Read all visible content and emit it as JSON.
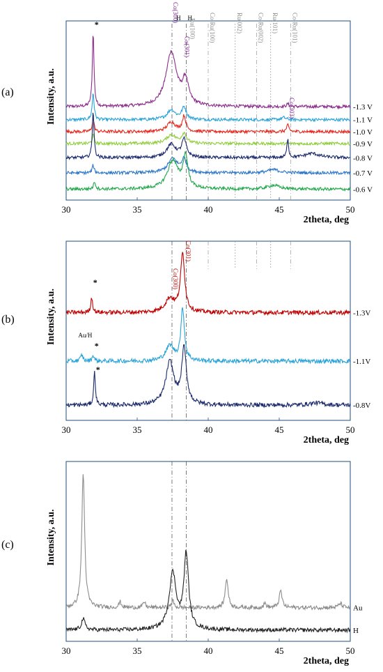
{
  "figure": {
    "panel_labels": [
      "(a)",
      "(b)",
      "(c)"
    ],
    "colors": {
      "frame": "#1f4e79",
      "ref_line": "#555555",
      "co_label": "#7a1f8c",
      "co_label_b": "#c00000",
      "ru_label": "#888888",
      "text": "#000000"
    }
  },
  "chart_data": [
    {
      "type": "line",
      "panel": "(a)",
      "xlabel": "2theta, deg",
      "ylabel": "Intensity, a.u.",
      "xlim": [
        30,
        50
      ],
      "xticks": [
        30,
        35,
        40,
        45,
        50
      ],
      "grid": false,
      "legend": "right-edge labels",
      "annotations": [
        {
          "text": "*",
          "x": 31.9
        },
        {
          "text": "Co(300)",
          "x": 37.4
        },
        {
          "text": "H",
          "x": 37.9
        },
        {
          "text": "H",
          "x": 38.7
        },
        {
          "text": "Co(301)",
          "x": 38.2
        },
        {
          "text": "Ru(100)",
          "x": 38.6
        },
        {
          "text": "Co-Ru(100)",
          "x": 40.0
        },
        {
          "text": "Ru(002)",
          "x": 41.9
        },
        {
          "text": "Co-Ru(002)",
          "x": 43.4
        },
        {
          "text": "Ru(101)",
          "x": 44.4
        },
        {
          "text": "Co-Ru(101)",
          "x": 45.8
        },
        {
          "text": "Co(303)",
          "x": 45.6
        }
      ],
      "reference_lines_x": [
        37.45,
        38.45,
        40.0,
        41.9,
        43.4,
        44.4,
        45.8
      ],
      "series": [
        {
          "name": "-1.3 V",
          "color": "#8b2d8b",
          "baseline": 8.6,
          "peaks": [
            {
              "x": 31.9,
              "h": 6.9,
              "w": 0.07
            },
            {
              "x": 37.4,
              "h": 5.0,
              "w": 0.45
            },
            {
              "x": 38.4,
              "h": 2.2,
              "w": 0.25
            },
            {
              "x": 45.6,
              "h": 0.25,
              "w": 0.1
            }
          ]
        },
        {
          "name": "-1.1 V",
          "color": "#29a3d8",
          "baseline": 7.4,
          "peaks": [
            {
              "x": 31.9,
              "h": 2.5,
              "w": 0.08
            },
            {
              "x": 37.4,
              "h": 0.9,
              "w": 0.35
            },
            {
              "x": 38.3,
              "h": 1.1,
              "w": 0.2
            },
            {
              "x": 45.3,
              "h": 0.2,
              "w": 0.2
            }
          ]
        },
        {
          "name": "-1.0 V",
          "color": "#e8281e",
          "baseline": 6.3,
          "peaks": [
            {
              "x": 31.9,
              "h": 1.2,
              "w": 0.08
            },
            {
              "x": 37.4,
              "h": 0.9,
              "w": 0.35
            },
            {
              "x": 38.3,
              "h": 1.4,
              "w": 0.15
            },
            {
              "x": 45.6,
              "h": 0.6,
              "w": 0.1
            }
          ]
        },
        {
          "name": "-0.9 V",
          "color": "#8fce3c",
          "baseline": 5.2,
          "peaks": [
            {
              "x": 31.9,
              "h": 0.8,
              "w": 0.08
            },
            {
              "x": 37.4,
              "h": 0.8,
              "w": 0.4
            },
            {
              "x": 38.3,
              "h": 0.9,
              "w": 0.2
            }
          ]
        },
        {
          "name": "-0.8 V",
          "color": "#1a2a6c",
          "baseline": 3.9,
          "peaks": [
            {
              "x": 31.9,
              "h": 4.4,
              "w": 0.07
            },
            {
              "x": 37.4,
              "h": 1.2,
              "w": 0.4
            },
            {
              "x": 38.3,
              "h": 1.6,
              "w": 0.2
            },
            {
              "x": 45.6,
              "h": 1.8,
              "w": 0.07
            },
            {
              "x": 47.3,
              "h": 0.4,
              "w": 0.6
            }
          ]
        },
        {
          "name": "-0.7 V",
          "color": "#2e78c8",
          "baseline": 2.5,
          "peaks": [
            {
              "x": 31.9,
              "h": 0.7,
              "w": 0.08
            },
            {
              "x": 37.5,
              "h": 1.3,
              "w": 0.4
            },
            {
              "x": 38.3,
              "h": 1.2,
              "w": 0.2
            },
            {
              "x": 44.6,
              "h": 0.3,
              "w": 0.5
            }
          ]
        },
        {
          "name": "-0.6 V",
          "color": "#1fa74a",
          "baseline": 1.0,
          "peaks": [
            {
              "x": 32.0,
              "h": 0.7,
              "w": 0.08
            },
            {
              "x": 37.5,
              "h": 2.6,
              "w": 0.45
            },
            {
              "x": 38.4,
              "h": 2.9,
              "w": 0.2
            },
            {
              "x": 44.6,
              "h": 0.35,
              "w": 0.5
            }
          ]
        }
      ]
    },
    {
      "type": "line",
      "panel": "(b)",
      "xlabel": "2theta, deg",
      "ylabel": "Intensity, a.u.",
      "xlim": [
        30,
        50
      ],
      "xticks": [
        30,
        35,
        40,
        45,
        50
      ],
      "grid": false,
      "legend": "right-edge labels",
      "annotations": [
        {
          "text": "*",
          "x": 31.8
        },
        {
          "text": "Co(300)",
          "x": 37.4
        },
        {
          "text": "Co(301)",
          "x": 38.3
        },
        {
          "text": "Au/H",
          "x": 31.0
        },
        {
          "text": "*",
          "x": 31.9
        },
        {
          "text": "*",
          "x": 32.0
        }
      ],
      "series": [
        {
          "name": "-1.3V",
          "color": "#c00000",
          "baseline": 7.1,
          "peaks": [
            {
              "x": 31.8,
              "h": 1.0,
              "w": 0.08
            },
            {
              "x": 37.3,
              "h": 0.9,
              "w": 0.4
            },
            {
              "x": 38.2,
              "h": 3.8,
              "w": 0.18
            }
          ]
        },
        {
          "name": "-1.1V",
          "color": "#29a3d8",
          "baseline": 3.9,
          "peaks": [
            {
              "x": 31.1,
              "h": 0.4,
              "w": 0.1
            },
            {
              "x": 31.9,
              "h": 0.4,
              "w": 0.08
            },
            {
              "x": 37.3,
              "h": 1.0,
              "w": 0.35
            },
            {
              "x": 38.2,
              "h": 3.4,
              "w": 0.15
            }
          ]
        },
        {
          "name": "-0.8V",
          "color": "#1a2a6c",
          "baseline": 1.0,
          "peaks": [
            {
              "x": 32.0,
              "h": 2.2,
              "w": 0.07
            },
            {
              "x": 37.3,
              "h": 2.8,
              "w": 0.35
            },
            {
              "x": 38.3,
              "h": 3.6,
              "w": 0.2
            },
            {
              "x": 47.6,
              "h": 0.15,
              "w": 0.6
            }
          ]
        }
      ]
    },
    {
      "type": "line",
      "panel": "(c)",
      "xlabel": "2theta, deg",
      "ylabel": "Intensity, a.u.",
      "xlim": [
        30,
        50
      ],
      "xticks": [
        30,
        35,
        40,
        45,
        50
      ],
      "grid": false,
      "legend": "right-edge labels",
      "series": [
        {
          "name": "Au",
          "color": "#8c8c8c",
          "baseline": 2.4,
          "peaks": [
            {
              "x": 31.2,
              "h": 9.6,
              "w": 0.12
            },
            {
              "x": 33.8,
              "h": 0.4,
              "w": 0.1
            },
            {
              "x": 35.5,
              "h": 0.4,
              "w": 0.1
            },
            {
              "x": 37.5,
              "h": 0.5,
              "w": 0.1
            },
            {
              "x": 41.3,
              "h": 2.1,
              "w": 0.12
            },
            {
              "x": 44.0,
              "h": 0.3,
              "w": 0.1
            },
            {
              "x": 45.1,
              "h": 1.2,
              "w": 0.12
            },
            {
              "x": 49.3,
              "h": 0.3,
              "w": 0.15
            }
          ]
        },
        {
          "name": "H",
          "color": "#222222",
          "baseline": 0.8,
          "peaks": [
            {
              "x": 31.2,
              "h": 0.8,
              "w": 0.15
            },
            {
              "x": 37.5,
              "h": 4.0,
              "w": 0.3
            },
            {
              "x": 38.45,
              "h": 5.3,
              "w": 0.2
            }
          ]
        }
      ]
    }
  ]
}
